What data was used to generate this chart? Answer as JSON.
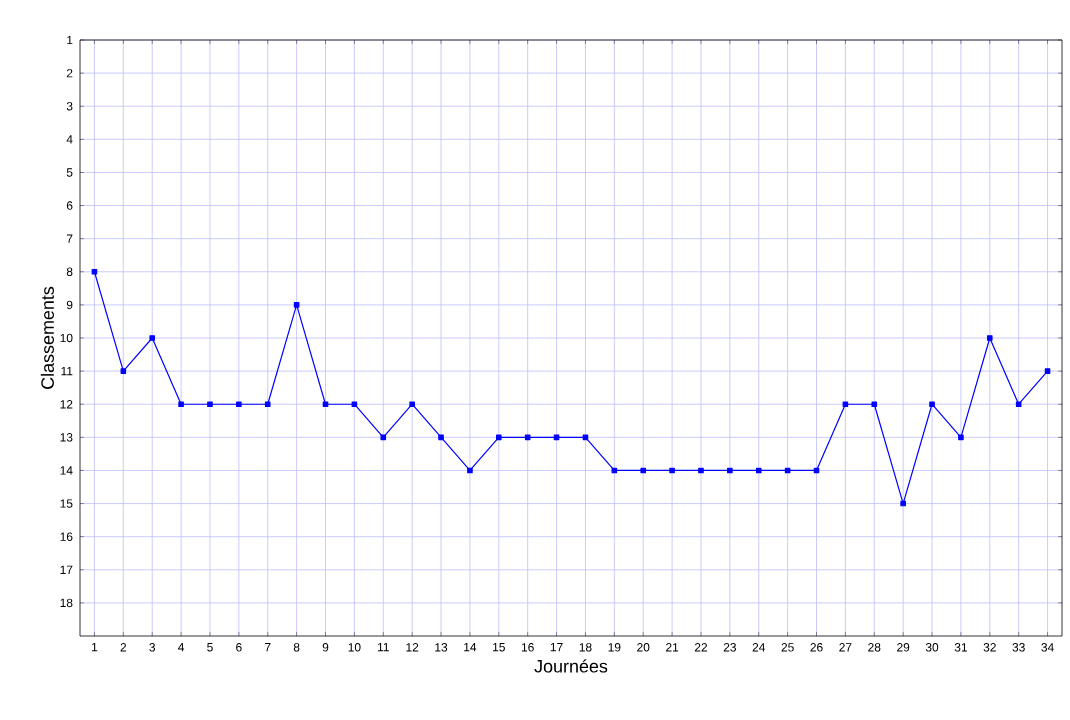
{
  "chart_data": {
    "type": "line",
    "xlabel": "Journées",
    "ylabel": "Classements",
    "x": [
      1,
      2,
      3,
      4,
      5,
      6,
      7,
      8,
      9,
      10,
      11,
      12,
      13,
      14,
      15,
      16,
      17,
      18,
      19,
      20,
      21,
      22,
      23,
      24,
      25,
      26,
      27,
      28,
      29,
      30,
      31,
      32,
      33,
      34
    ],
    "series": [
      {
        "color": "#0000ff",
        "values": [
          8,
          11,
          10,
          12,
          12,
          12,
          12,
          9,
          12,
          12,
          13,
          12,
          13,
          14,
          13,
          13,
          13,
          13,
          14,
          14,
          14,
          14,
          14,
          14,
          14,
          14,
          12,
          12,
          15,
          12,
          13,
          10,
          12,
          11
        ]
      }
    ],
    "xlim": [
      0.5,
      34.5
    ],
    "ylim": [
      19,
      1
    ],
    "xticks": [
      1,
      2,
      3,
      4,
      5,
      6,
      7,
      8,
      9,
      10,
      11,
      12,
      13,
      14,
      15,
      16,
      17,
      18,
      19,
      20,
      21,
      22,
      23,
      24,
      25,
      26,
      27,
      28,
      29,
      30,
      31,
      32,
      33,
      34
    ],
    "yticks": [
      1,
      2,
      3,
      4,
      5,
      6,
      7,
      8,
      9,
      10,
      11,
      12,
      13,
      14,
      15,
      16,
      17,
      18
    ],
    "grid": true,
    "marker": "square",
    "line_style": "solid"
  }
}
